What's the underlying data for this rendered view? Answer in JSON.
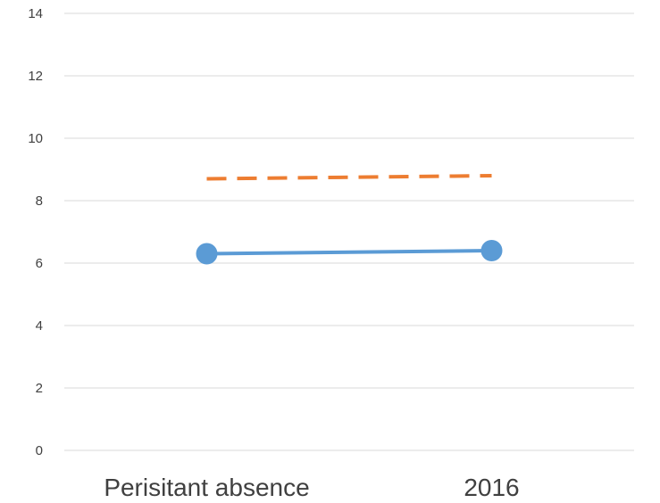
{
  "chart_data": {
    "type": "line",
    "categories": [
      "Perisitant absence",
      "2016"
    ],
    "series": [
      {
        "values": [
          6.3,
          6.4
        ],
        "color": "#5b9bd5",
        "line_style": "solid",
        "markers": "circle"
      },
      {
        "values": [
          8.7,
          8.8
        ],
        "color": "#ed7d31",
        "line_style": "dashed",
        "markers": "none"
      }
    ],
    "ylim": [
      0,
      14
    ],
    "yticks": [
      0,
      2,
      4,
      6,
      8,
      10,
      12,
      14
    ],
    "grid": "horizontal",
    "legend": "none"
  }
}
